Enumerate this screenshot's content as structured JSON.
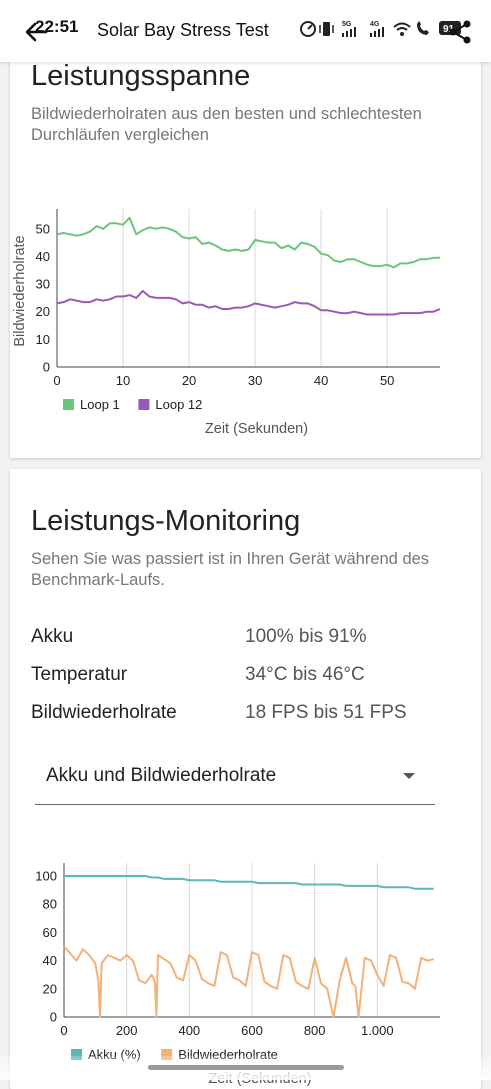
{
  "status": {
    "time": "22:51",
    "battery": "91"
  },
  "header": {
    "title": "Solar Bay Stress Test"
  },
  "range_card": {
    "title": "Leistungsspanne",
    "subtitle": "Bildwiederholraten aus den besten und schlechtesten Durchläufen vergleichen"
  },
  "monitor_card": {
    "title": "Leistungs-Monitoring",
    "subtitle": "Sehen Sie was passiert ist in Ihren Gerät während des Benchmark-Laufs.",
    "stats": [
      {
        "label": "Akku",
        "value": "100% bis 91%"
      },
      {
        "label": "Temperatur",
        "value": "34°C bis 46°C"
      },
      {
        "label": "Bildwiederholrate",
        "value": "18 FPS bis 51 FPS"
      }
    ],
    "dropdown": {
      "selected": "Akku und Bildwiederholrate"
    }
  },
  "chart_data": [
    {
      "type": "line",
      "xlabel": "Zeit (Sekunden)",
      "ylabel": "Bildwiederholrate",
      "xlim": [
        0,
        58
      ],
      "ylim": [
        0,
        55
      ],
      "xticks": [
        "0",
        "10",
        "20",
        "30",
        "40",
        "50"
      ],
      "yticks": [
        "0",
        "10",
        "20",
        "30",
        "40",
        "50"
      ],
      "grid": "vertical",
      "legend": "bottom-left",
      "x": [
        0,
        1,
        2,
        3,
        4,
        5,
        6,
        7,
        8,
        9,
        10,
        11,
        12,
        13,
        14,
        15,
        16,
        17,
        18,
        19,
        20,
        21,
        22,
        23,
        24,
        25,
        26,
        27,
        28,
        29,
        30,
        31,
        32,
        33,
        34,
        35,
        36,
        37,
        38,
        39,
        40,
        41,
        42,
        43,
        44,
        45,
        46,
        47,
        48,
        49,
        50,
        51,
        52,
        53,
        54,
        55,
        56,
        57,
        58
      ],
      "series": [
        {
          "name": "Loop 1",
          "color": "#6cc57c",
          "values": [
            48,
            48.5,
            48,
            47.5,
            48,
            49,
            51,
            50,
            52,
            52,
            51.5,
            54,
            48,
            49.5,
            50.5,
            50,
            50.5,
            50,
            49,
            47,
            46.5,
            47,
            44.5,
            45,
            44,
            42.5,
            42,
            42.5,
            42,
            42.5,
            46,
            45.5,
            45,
            45,
            43,
            44,
            42.5,
            45,
            44.5,
            43.5,
            41,
            40.5,
            38.5,
            38,
            39,
            39,
            38,
            37,
            36.5,
            36.5,
            37,
            36,
            37.5,
            37.5,
            38,
            39,
            39,
            39.5,
            39.5
          ]
        },
        {
          "name": "Loop 12",
          "color": "#9b59b6",
          "values": [
            23,
            23.5,
            24.5,
            24,
            23.5,
            23.5,
            24.5,
            24,
            24.5,
            25.5,
            25.5,
            26,
            25,
            27.5,
            25.5,
            25,
            25,
            25,
            24.5,
            23,
            23.5,
            22.5,
            22.5,
            21.5,
            22,
            21,
            21,
            21.5,
            21.5,
            22,
            23,
            22.5,
            22,
            21.5,
            22,
            22.5,
            23.5,
            23,
            23,
            22,
            20.5,
            20.5,
            20,
            19.5,
            19.5,
            20,
            19.5,
            19,
            19,
            19,
            19,
            19,
            19.5,
            19.5,
            19.5,
            19.5,
            20,
            20,
            21
          ]
        }
      ]
    },
    {
      "type": "line",
      "xlabel": "Zeit (Sekunden)",
      "xlim": [
        0,
        1200
      ],
      "ylim": [
        0,
        105
      ],
      "xticks": [
        "0",
        "200",
        "400",
        "600",
        "800",
        "1.000"
      ],
      "yticks": [
        "0",
        "20",
        "40",
        "60",
        "80",
        "100"
      ],
      "grid": "vertical",
      "legend": "bottom-left",
      "x": [
        0,
        20,
        40,
        60,
        80,
        100,
        110,
        115,
        120,
        140,
        160,
        180,
        200,
        220,
        240,
        260,
        280,
        290,
        295,
        300,
        320,
        340,
        360,
        380,
        400,
        420,
        440,
        460,
        480,
        500,
        520,
        540,
        560,
        580,
        600,
        620,
        640,
        660,
        680,
        700,
        720,
        740,
        760,
        780,
        800,
        820,
        840,
        860,
        880,
        900,
        920,
        930,
        940,
        960,
        980,
        1000,
        1020,
        1040,
        1060,
        1080,
        1100,
        1120,
        1140,
        1160,
        1180
      ],
      "series": [
        {
          "name": "Akku (%)",
          "color": "#5ab8b8",
          "values": [
            100,
            100,
            100,
            100,
            100,
            100,
            100,
            100,
            100,
            100,
            100,
            100,
            100,
            100,
            100,
            100,
            99,
            99,
            99,
            99,
            98,
            98,
            98,
            98,
            97,
            97,
            97,
            97,
            97,
            96,
            96,
            96,
            96,
            96,
            96,
            95,
            95,
            95,
            95,
            95,
            95,
            95,
            94,
            94,
            94,
            94,
            94,
            94,
            94,
            93,
            93,
            93,
            93,
            93,
            93,
            93,
            92,
            92,
            92,
            92,
            92,
            91,
            91,
            91,
            91
          ]
        },
        {
          "name": "Bildwiederholrate",
          "color": "#f2b179",
          "values": [
            50,
            45,
            40,
            48,
            44,
            38,
            25,
            0,
            38,
            44,
            42,
            40,
            44,
            40,
            26,
            24,
            30,
            25,
            0,
            44,
            41,
            38,
            28,
            26,
            44,
            40,
            27,
            24,
            22,
            46,
            44,
            28,
            26,
            22,
            46,
            44,
            25,
            22,
            20,
            44,
            42,
            25,
            22,
            20,
            42,
            24,
            20,
            0,
            26,
            42,
            24,
            22,
            0,
            42,
            40,
            30,
            22,
            44,
            42,
            25,
            24,
            20,
            42,
            40,
            41
          ]
        }
      ]
    }
  ]
}
